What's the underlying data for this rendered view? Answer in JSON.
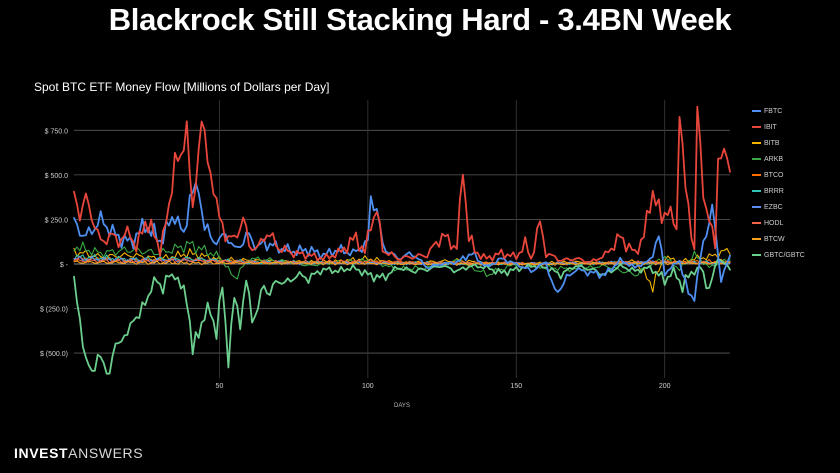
{
  "headline": "Blackrock Still Stacking Hard - 3.4BN Week",
  "brand": {
    "part1": "INVEST",
    "part2": "ANSWERS"
  },
  "chart_data": {
    "type": "line",
    "title": "Spot BTC ETF Money Flow [Millions of Dollars per Day]",
    "xlabel": "DAYS",
    "ylabel": "",
    "xlim": [
      1,
      222
    ],
    "ylim": [
      -640,
      920
    ],
    "x_ticks": [
      50,
      100,
      150,
      200
    ],
    "y_ticks": [
      750,
      500,
      250,
      0,
      -250,
      -500
    ],
    "y_tick_labels": [
      "$ 750.0",
      "$ 500.0",
      "$ 250.0",
      "$ -",
      "$ (250.0)",
      "$ (500.0)"
    ],
    "grid": true,
    "legend_position": "right",
    "series": [
      {
        "name": "FBTC",
        "color": "#4f8ff0",
        "knots": [
          [
            1,
            230
          ],
          [
            5,
            150
          ],
          [
            10,
            250
          ],
          [
            15,
            160
          ],
          [
            20,
            120
          ],
          [
            25,
            220
          ],
          [
            30,
            130
          ],
          [
            35,
            280
          ],
          [
            38,
            150
          ],
          [
            40,
            380
          ],
          [
            43,
            430
          ],
          [
            45,
            200
          ],
          [
            48,
            140
          ],
          [
            50,
            120
          ],
          [
            52,
            180
          ],
          [
            55,
            80
          ],
          [
            60,
            160
          ],
          [
            63,
            90
          ],
          [
            65,
            120
          ],
          [
            70,
            90
          ],
          [
            75,
            70
          ],
          [
            80,
            80
          ],
          [
            85,
            50
          ],
          [
            90,
            80
          ],
          [
            95,
            60
          ],
          [
            100,
            120
          ],
          [
            101,
            370
          ],
          [
            103,
            310
          ],
          [
            105,
            100
          ],
          [
            110,
            30
          ],
          [
            115,
            60
          ],
          [
            120,
            -20
          ],
          [
            125,
            0
          ],
          [
            130,
            10
          ],
          [
            135,
            60
          ],
          [
            140,
            -20
          ],
          [
            145,
            30
          ],
          [
            150,
            0
          ],
          [
            155,
            -40
          ],
          [
            160,
            10
          ],
          [
            163,
            -170
          ],
          [
            165,
            -120
          ],
          [
            170,
            -30
          ],
          [
            175,
            -50
          ],
          [
            180,
            -60
          ],
          [
            185,
            20
          ],
          [
            190,
            -20
          ],
          [
            195,
            20
          ],
          [
            198,
            160
          ],
          [
            200,
            -50
          ],
          [
            205,
            20
          ],
          [
            208,
            -180
          ],
          [
            210,
            -170
          ],
          [
            213,
            120
          ],
          [
            216,
            310
          ],
          [
            219,
            -80
          ],
          [
            222,
            40
          ]
        ]
      },
      {
        "name": "IBIT",
        "color": "#e8463b",
        "knots": [
          [
            1,
            390
          ],
          [
            3,
            280
          ],
          [
            5,
            370
          ],
          [
            8,
            220
          ],
          [
            10,
            120
          ],
          [
            13,
            160
          ],
          [
            16,
            130
          ],
          [
            20,
            180
          ],
          [
            22,
            80
          ],
          [
            25,
            240
          ],
          [
            27,
            200
          ],
          [
            30,
            80
          ],
          [
            33,
            300
          ],
          [
            35,
            610
          ],
          [
            37,
            560
          ],
          [
            39,
            800
          ],
          [
            41,
            260
          ],
          [
            44,
            840
          ],
          [
            46,
            570
          ],
          [
            48,
            440
          ],
          [
            50,
            250
          ],
          [
            52,
            170
          ],
          [
            55,
            130
          ],
          [
            58,
            260
          ],
          [
            60,
            100
          ],
          [
            63,
            90
          ],
          [
            66,
            180
          ],
          [
            70,
            90
          ],
          [
            75,
            60
          ],
          [
            80,
            50
          ],
          [
            85,
            30
          ],
          [
            90,
            60
          ],
          [
            93,
            100
          ],
          [
            96,
            150
          ],
          [
            99,
            60
          ],
          [
            101,
            230
          ],
          [
            103,
            300
          ],
          [
            105,
            80
          ],
          [
            110,
            30
          ],
          [
            115,
            40
          ],
          [
            120,
            50
          ],
          [
            125,
            160
          ],
          [
            130,
            90
          ],
          [
            132,
            530
          ],
          [
            134,
            160
          ],
          [
            136,
            70
          ],
          [
            140,
            30
          ],
          [
            145,
            60
          ],
          [
            150,
            40
          ],
          [
            153,
            110
          ],
          [
            155,
            30
          ],
          [
            158,
            230
          ],
          [
            160,
            60
          ],
          [
            165,
            20
          ],
          [
            170,
            30
          ],
          [
            175,
            10
          ],
          [
            180,
            50
          ],
          [
            185,
            150
          ],
          [
            190,
            60
          ],
          [
            193,
            160
          ],
          [
            196,
            410
          ],
          [
            199,
            250
          ],
          [
            201,
            320
          ],
          [
            204,
            180
          ],
          [
            205,
            880
          ],
          [
            207,
            420
          ],
          [
            210,
            80
          ],
          [
            211,
            880
          ],
          [
            213,
            400
          ],
          [
            215,
            250
          ],
          [
            217,
            90
          ],
          [
            218,
            610
          ],
          [
            220,
            620
          ],
          [
            222,
            530
          ]
        ]
      },
      {
        "name": "BITB",
        "color": "#f5b400",
        "knots": [
          [
            1,
            70
          ],
          [
            10,
            40
          ],
          [
            20,
            50
          ],
          [
            30,
            30
          ],
          [
            40,
            60
          ],
          [
            50,
            25
          ],
          [
            60,
            20
          ],
          [
            70,
            15
          ],
          [
            80,
            10
          ],
          [
            90,
            15
          ],
          [
            100,
            30
          ],
          [
            110,
            5
          ],
          [
            120,
            10
          ],
          [
            130,
            20
          ],
          [
            140,
            5
          ],
          [
            150,
            0
          ],
          [
            160,
            5
          ],
          [
            170,
            10
          ],
          [
            180,
            5
          ],
          [
            190,
            15
          ],
          [
            196,
            -120
          ],
          [
            200,
            40
          ],
          [
            205,
            10
          ],
          [
            210,
            30
          ],
          [
            215,
            40
          ],
          [
            222,
            80
          ]
        ]
      },
      {
        "name": "ARKB",
        "color": "#39a845",
        "knots": [
          [
            1,
            100
          ],
          [
            10,
            60
          ],
          [
            20,
            80
          ],
          [
            30,
            60
          ],
          [
            40,
            110
          ],
          [
            50,
            40
          ],
          [
            55,
            -80
          ],
          [
            60,
            30
          ],
          [
            70,
            20
          ],
          [
            80,
            -10
          ],
          [
            90,
            10
          ],
          [
            100,
            20
          ],
          [
            110,
            -30
          ],
          [
            120,
            -20
          ],
          [
            130,
            20
          ],
          [
            140,
            -60
          ],
          [
            150,
            0
          ],
          [
            160,
            -20
          ],
          [
            170,
            -30
          ],
          [
            180,
            -10
          ],
          [
            190,
            -60
          ],
          [
            200,
            40
          ],
          [
            205,
            -30
          ],
          [
            210,
            50
          ],
          [
            215,
            -20
          ],
          [
            222,
            30
          ]
        ]
      },
      {
        "name": "BTCO",
        "color": "#ff6d00",
        "knots": [
          [
            1,
            30
          ],
          [
            20,
            20
          ],
          [
            40,
            25
          ],
          [
            60,
            10
          ],
          [
            80,
            5
          ],
          [
            100,
            10
          ],
          [
            120,
            5
          ],
          [
            140,
            5
          ],
          [
            160,
            0
          ],
          [
            180,
            5
          ],
          [
            200,
            10
          ],
          [
            222,
            15
          ]
        ]
      },
      {
        "name": "BRRR",
        "color": "#2ec4b6",
        "knots": [
          [
            1,
            40
          ],
          [
            20,
            25
          ],
          [
            40,
            30
          ],
          [
            60,
            10
          ],
          [
            80,
            10
          ],
          [
            100,
            5
          ],
          [
            120,
            5
          ],
          [
            140,
            0
          ],
          [
            160,
            0
          ],
          [
            180,
            5
          ],
          [
            200,
            5
          ],
          [
            222,
            10
          ]
        ]
      },
      {
        "name": "EZBC",
        "color": "#5b8def",
        "knots": [
          [
            1,
            30
          ],
          [
            20,
            20
          ],
          [
            40,
            20
          ],
          [
            60,
            10
          ],
          [
            80,
            5
          ],
          [
            100,
            5
          ],
          [
            120,
            0
          ],
          [
            140,
            0
          ],
          [
            160,
            5
          ],
          [
            180,
            5
          ],
          [
            200,
            10
          ],
          [
            222,
            5
          ]
        ]
      },
      {
        "name": "HODL",
        "color": "#f06449",
        "knots": [
          [
            1,
            20
          ],
          [
            20,
            15
          ],
          [
            40,
            20
          ],
          [
            60,
            10
          ],
          [
            80,
            10
          ],
          [
            100,
            15
          ],
          [
            120,
            5
          ],
          [
            140,
            5
          ],
          [
            160,
            0
          ],
          [
            180,
            5
          ],
          [
            200,
            10
          ],
          [
            222,
            5
          ]
        ]
      },
      {
        "name": "BTCW",
        "color": "#f7a21b",
        "knots": [
          [
            1,
            10
          ],
          [
            40,
            5
          ],
          [
            80,
            5
          ],
          [
            120,
            0
          ],
          [
            160,
            0
          ],
          [
            200,
            5
          ],
          [
            222,
            5
          ]
        ]
      },
      {
        "name": "GBTC/GBTC",
        "color": "#6ccf8e",
        "knots": [
          [
            1,
            -110
          ],
          [
            3,
            -300
          ],
          [
            5,
            -560
          ],
          [
            7,
            -600
          ],
          [
            9,
            -520
          ],
          [
            11,
            -570
          ],
          [
            13,
            -600
          ],
          [
            15,
            -470
          ],
          [
            17,
            -400
          ],
          [
            19,
            -420
          ],
          [
            21,
            -280
          ],
          [
            23,
            -310
          ],
          [
            25,
            -200
          ],
          [
            27,
            -140
          ],
          [
            29,
            -90
          ],
          [
            31,
            -130
          ],
          [
            33,
            -70
          ],
          [
            35,
            -60
          ],
          [
            37,
            -140
          ],
          [
            39,
            -170
          ],
          [
            41,
            -500
          ],
          [
            43,
            -370
          ],
          [
            45,
            -290
          ],
          [
            47,
            -260
          ],
          [
            49,
            -380
          ],
          [
            51,
            -130
          ],
          [
            53,
            -530
          ],
          [
            55,
            -200
          ],
          [
            57,
            -320
          ],
          [
            59,
            -100
          ],
          [
            61,
            -300
          ],
          [
            63,
            -250
          ],
          [
            65,
            -120
          ],
          [
            67,
            -160
          ],
          [
            70,
            -90
          ],
          [
            73,
            -110
          ],
          [
            76,
            -60
          ],
          [
            80,
            -80
          ],
          [
            85,
            -30
          ],
          [
            90,
            -40
          ],
          [
            95,
            -20
          ],
          [
            100,
            -60
          ],
          [
            105,
            -80
          ],
          [
            110,
            -20
          ],
          [
            115,
            -40
          ],
          [
            120,
            -30
          ],
          [
            125,
            -10
          ],
          [
            130,
            -40
          ],
          [
            135,
            -10
          ],
          [
            140,
            -20
          ],
          [
            145,
            -50
          ],
          [
            150,
            -30
          ],
          [
            155,
            -10
          ],
          [
            160,
            -20
          ],
          [
            165,
            -60
          ],
          [
            170,
            -10
          ],
          [
            175,
            -30
          ],
          [
            180,
            -60
          ],
          [
            185,
            -10
          ],
          [
            190,
            -40
          ],
          [
            195,
            -20
          ],
          [
            200,
            -90
          ],
          [
            203,
            -40
          ],
          [
            206,
            -120
          ],
          [
            209,
            -50
          ],
          [
            212,
            -20
          ],
          [
            215,
            -140
          ],
          [
            218,
            40
          ],
          [
            222,
            -30
          ]
        ]
      }
    ]
  }
}
